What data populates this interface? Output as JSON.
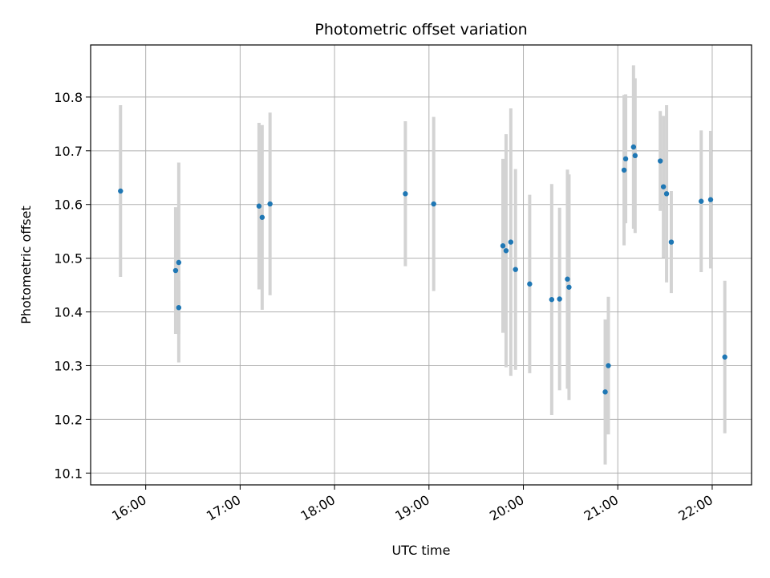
{
  "chart_data": {
    "type": "scatter",
    "title": "Photometric offset variation",
    "xlabel": "UTC time",
    "ylabel": "Photometric offset",
    "x_ticks": [
      "16:00",
      "17:00",
      "18:00",
      "19:00",
      "20:00",
      "21:00",
      "22:00"
    ],
    "y_ticks": [
      "10.1",
      "10.2",
      "10.3",
      "10.4",
      "10.5",
      "10.6",
      "10.7",
      "10.8"
    ],
    "xlim": [
      "15:25",
      "22:25"
    ],
    "ylim": [
      10.078,
      10.897
    ],
    "grid": true,
    "colors": {
      "point": "#1f77b4",
      "errorbar": "#d3d3d3",
      "grid": "#b0b0b0"
    },
    "points": [
      {
        "x": "15:44",
        "y": 10.625,
        "yerr": 0.16
      },
      {
        "x": "16:19",
        "y": 10.477,
        "yerr": 0.118
      },
      {
        "x": "16:21",
        "y": 10.408,
        "yerr": 0.05
      },
      {
        "x": "16:21",
        "y": 10.492,
        "yerr": 0.186
      },
      {
        "x": "17:12",
        "y": 10.597,
        "yerr": 0.155
      },
      {
        "x": "17:14",
        "y": 10.576,
        "yerr": 0.172
      },
      {
        "x": "17:19",
        "y": 10.601,
        "yerr": 0.17
      },
      {
        "x": "18:45",
        "y": 10.62,
        "yerr": 0.135
      },
      {
        "x": "19:03",
        "y": 10.601,
        "yerr": 0.162
      },
      {
        "x": "19:47",
        "y": 10.523,
        "yerr": 0.162
      },
      {
        "x": "19:49",
        "y": 10.514,
        "yerr": 0.217
      },
      {
        "x": "19:52",
        "y": 10.53,
        "yerr": 0.249
      },
      {
        "x": "19:55",
        "y": 10.479,
        "yerr": 0.187
      },
      {
        "x": "20:04",
        "y": 10.452,
        "yerr": 0.166
      },
      {
        "x": "20:18",
        "y": 10.423,
        "yerr": 0.215
      },
      {
        "x": "20:23",
        "y": 10.424,
        "yerr": 0.17
      },
      {
        "x": "20:28",
        "y": 10.461,
        "yerr": 0.204
      },
      {
        "x": "20:29",
        "y": 10.446,
        "yerr": 0.21
      },
      {
        "x": "20:52",
        "y": 10.251,
        "yerr": 0.135
      },
      {
        "x": "20:54",
        "y": 10.3,
        "yerr": 0.128
      },
      {
        "x": "21:04",
        "y": 10.664,
        "yerr": 0.14
      },
      {
        "x": "21:05",
        "y": 10.685,
        "yerr": 0.12
      },
      {
        "x": "21:10",
        "y": 10.707,
        "yerr": 0.152
      },
      {
        "x": "21:11",
        "y": 10.691,
        "yerr": 0.144
      },
      {
        "x": "21:27",
        "y": 10.681,
        "yerr": 0.093
      },
      {
        "x": "21:29",
        "y": 10.633,
        "yerr": 0.132
      },
      {
        "x": "21:31",
        "y": 10.62,
        "yerr": 0.165
      },
      {
        "x": "21:34",
        "y": 10.53,
        "yerr": 0.095
      },
      {
        "x": "21:53",
        "y": 10.606,
        "yerr": 0.132
      },
      {
        "x": "21:59",
        "y": 10.609,
        "yerr": 0.128
      },
      {
        "x": "22:08",
        "y": 10.316,
        "yerr": 0.142
      }
    ]
  }
}
